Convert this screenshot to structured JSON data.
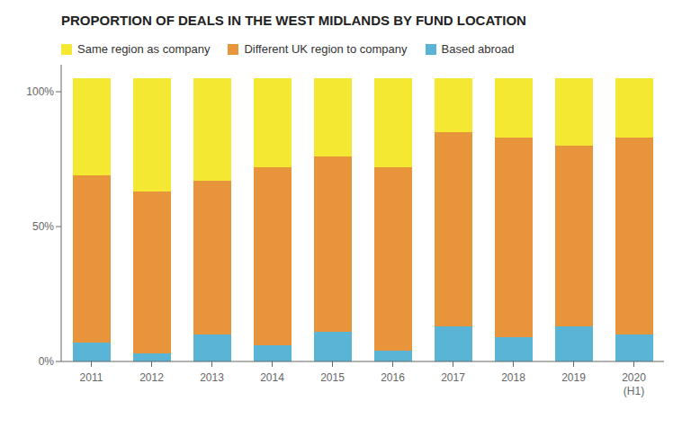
{
  "chart_data": {
    "type": "bar",
    "title": "PROPORTION OF DEALS IN THE WEST MIDLANDS BY FUND LOCATION",
    "stacked": true,
    "categories": [
      "2011",
      "2012",
      "2013",
      "2014",
      "2015",
      "2016",
      "2017",
      "2018",
      "2019",
      "2020\n(H1)"
    ],
    "series": [
      {
        "name": "Based abroad",
        "color": "#5ab4d6",
        "values": [
          7,
          3,
          10,
          6,
          11,
          4,
          13,
          9,
          13,
          10
        ]
      },
      {
        "name": "Different UK region to company",
        "color": "#e8943a",
        "values": [
          62,
          60,
          57,
          66,
          65,
          68,
          72,
          74,
          67,
          73
        ]
      },
      {
        "name": "Same region as company",
        "color": "#f5e832",
        "values": [
          36,
          42,
          38,
          33,
          29,
          33,
          20,
          22,
          25,
          22
        ]
      }
    ],
    "ylim": [
      0,
      110
    ],
    "yticks": [
      {
        "value": 0,
        "label": "0%"
      },
      {
        "value": 50,
        "label": "50%"
      },
      {
        "value": 100,
        "label": "100%"
      }
    ],
    "grid": false,
    "legend": "top"
  }
}
